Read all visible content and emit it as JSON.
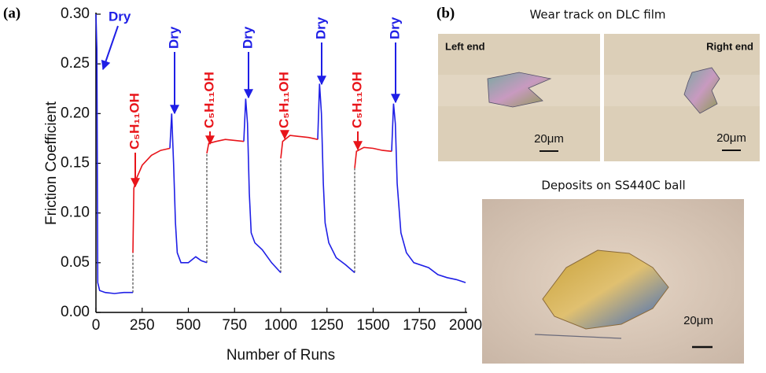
{
  "chart_data": {
    "type": "line",
    "panel_label": "(a)",
    "xlabel": "Number of Runs",
    "ylabel": "Friction Coefficient",
    "xlim": [
      0,
      2000
    ],
    "ylim": [
      0,
      0.3
    ],
    "xticks": [
      0,
      250,
      500,
      750,
      1000,
      1250,
      1500,
      1750,
      2000
    ],
    "yticks": [
      {
        "value": 0,
        "label": "0.00"
      },
      0.05,
      {
        "value": 0.1,
        "label": "0.10"
      },
      0.15,
      {
        "value": 0.2,
        "label": "0.20"
      },
      0.25,
      {
        "value": 0.3,
        "label": "0.30"
      }
    ],
    "annotations": [
      "Dry",
      "C₅H₁₁OH",
      "Dry",
      "C₅H₁₁OH",
      "Dry",
      "C₅H₁₁OH",
      "Dry",
      "C₅H₁₁OH",
      "Dry"
    ],
    "series": [
      {
        "color": "#1f1fe6",
        "x": [
          0,
          5,
          10,
          20,
          50,
          100,
          150,
          200,
          300,
          400,
          410,
          420,
          430,
          440,
          460,
          500,
          540,
          570,
          600,
          700,
          800,
          810,
          820,
          830,
          840,
          860,
          900,
          950,
          1000,
          1100,
          1200,
          1210,
          1220,
          1230,
          1240,
          1260,
          1300,
          1350,
          1400,
          1500,
          1600,
          1610,
          1620,
          1630,
          1650,
          1680,
          1720,
          1800,
          1850,
          1900,
          1950,
          2000
        ],
        "values": [
          0.3,
          0.265,
          0.03,
          0.022,
          0.02,
          0.019,
          0.02,
          0.02,
          null,
          0.165,
          0.2,
          0.15,
          0.09,
          0.06,
          0.05,
          0.05,
          0.056,
          0.052,
          0.05,
          null,
          0.172,
          0.215,
          0.19,
          0.12,
          0.08,
          0.07,
          0.063,
          0.05,
          0.04,
          null,
          0.174,
          0.23,
          0.2,
          0.13,
          0.09,
          0.07,
          0.055,
          0.048,
          0.04,
          null,
          0.162,
          0.21,
          0.19,
          0.13,
          0.08,
          0.06,
          0.05,
          0.045,
          0.038,
          0.035,
          0.033,
          0.03
        ]
      },
      {
        "color": "#e8141a",
        "x": [
          200,
          205,
          220,
          250,
          300,
          350,
          400,
          500,
          600,
          610,
          650,
          700,
          750,
          800,
          900,
          1000,
          1010,
          1050,
          1100,
          1150,
          1200,
          1300,
          1400,
          1410,
          1450,
          1500,
          1550,
          1600
        ],
        "values": [
          0.06,
          0.125,
          0.135,
          0.148,
          0.158,
          0.163,
          0.165,
          null,
          0.16,
          0.17,
          0.172,
          0.174,
          0.173,
          0.172,
          null,
          0.155,
          0.172,
          0.178,
          0.177,
          0.176,
          0.174,
          null,
          0.145,
          0.162,
          0.166,
          0.165,
          0.163,
          0.162
        ]
      }
    ]
  },
  "images": {
    "panel_label": "(b)",
    "top_caption": "Wear track on DLC film",
    "left_label": "Left end",
    "right_label": "Right end",
    "scale_labels": [
      "20μm",
      "20μm",
      "20μm"
    ],
    "bottom_caption": "Deposits on SS440C ball"
  }
}
